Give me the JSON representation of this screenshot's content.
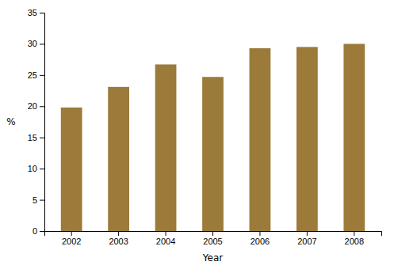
{
  "chart_data": {
    "type": "bar",
    "categories": [
      "2002",
      "2003",
      "2004",
      "2005",
      "2006",
      "2007",
      "2008"
    ],
    "values": [
      19.8,
      23.1,
      26.7,
      24.7,
      29.3,
      29.5,
      30.0
    ],
    "color": "#9B7A3A",
    "xlabel": "Year",
    "ylabel": "%",
    "ylim": [
      0,
      35
    ],
    "yticks": [
      0,
      5,
      10,
      15,
      20,
      25,
      30,
      35
    ],
    "grid": false
  }
}
